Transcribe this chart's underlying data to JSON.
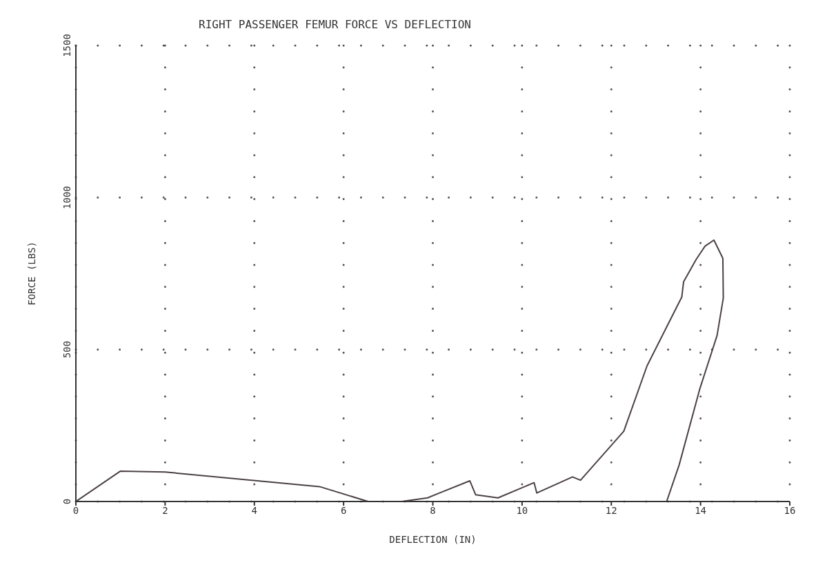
{
  "chart_data": {
    "type": "line",
    "title": "RIGHT PASSENGER FEMUR FORCE VS DEFLECTION",
    "xlabel": "DEFLECTION (IN)",
    "ylabel": "FORCE (LBS)",
    "xlim": [
      0,
      16
    ],
    "xticks": [
      0,
      2,
      4,
      6,
      8,
      10,
      12,
      14,
      16
    ],
    "ylim": [
      0,
      1500
    ],
    "yticks": [
      0,
      500,
      1000,
      1500
    ],
    "grid": true,
    "series": [
      {
        "color": "#4a4045",
        "x": [
          0,
          1.0,
          2.0,
          5.46,
          6.55,
          7.3,
          7.88,
          8.15,
          8.83,
          8.96,
          9.46,
          10.27,
          10.33,
          11.13,
          11.31,
          12.28,
          12.8,
          13.58,
          13.62,
          13.9,
          14.1,
          14.3,
          14.5,
          14.51,
          14.37,
          13.98,
          13.52,
          13.24
        ],
        "values": [
          0,
          100,
          97,
          49,
          0,
          0,
          12,
          28,
          68,
          22,
          12,
          62,
          28,
          81,
          70,
          231,
          446,
          673,
          723,
          796,
          840,
          860,
          800,
          669,
          546,
          369,
          120,
          0
        ]
      }
    ]
  }
}
